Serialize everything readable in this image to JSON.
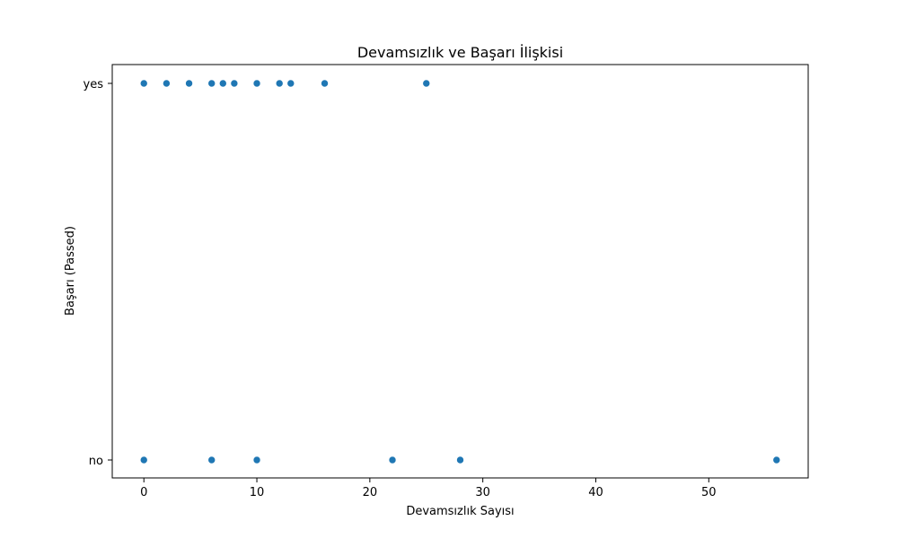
{
  "chart_data": {
    "type": "scatter",
    "title": "Devamsızlık ve Başarı İlişkisi",
    "xlabel": "Devamsızlık Sayısı",
    "ylabel": "Başarı (Passed)",
    "categories_y": [
      "no",
      "yes"
    ],
    "xlim": [
      -2.8,
      58.8
    ],
    "x_ticks": [
      0,
      10,
      20,
      30,
      40,
      50
    ],
    "grid": false,
    "marker_color": "#1f77b4",
    "points": [
      {
        "x": 0,
        "y": "yes"
      },
      {
        "x": 2,
        "y": "yes"
      },
      {
        "x": 4,
        "y": "yes"
      },
      {
        "x": 6,
        "y": "yes"
      },
      {
        "x": 7,
        "y": "yes"
      },
      {
        "x": 8,
        "y": "yes"
      },
      {
        "x": 10,
        "y": "yes"
      },
      {
        "x": 12,
        "y": "yes"
      },
      {
        "x": 13,
        "y": "yes"
      },
      {
        "x": 16,
        "y": "yes"
      },
      {
        "x": 25,
        "y": "yes"
      },
      {
        "x": 0,
        "y": "no"
      },
      {
        "x": 6,
        "y": "no"
      },
      {
        "x": 10,
        "y": "no"
      },
      {
        "x": 22,
        "y": "no"
      },
      {
        "x": 28,
        "y": "no"
      },
      {
        "x": 56,
        "y": "no"
      }
    ]
  }
}
